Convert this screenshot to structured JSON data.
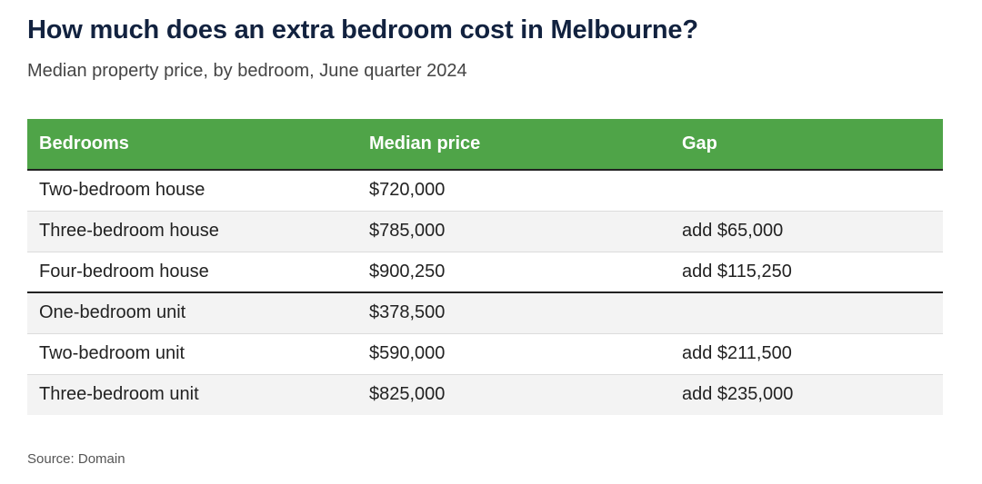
{
  "title": "How much does an extra bedroom cost in Melbourne?",
  "subtitle": "Median property price, by bedroom, June quarter 2024",
  "source": "Source: Domain",
  "colors": {
    "header_bg": "#4fa448",
    "header_text": "#ffffff",
    "title": "#12223f",
    "row_alt": "#f3f3f3"
  },
  "chart_data": {
    "type": "table",
    "title": "How much does an extra bedroom cost in Melbourne?",
    "subtitle": "Median property price, by bedroom, June quarter 2024",
    "columns": [
      "Bedrooms",
      "Median price",
      "Gap"
    ],
    "rows": [
      [
        "Two-bedroom house",
        "$720,000",
        ""
      ],
      [
        "Three-bedroom house",
        "$785,000",
        "add $65,000"
      ],
      [
        "Four-bedroom house",
        "$900,250",
        "add $115,250"
      ],
      [
        "One-bedroom unit",
        "$378,500",
        ""
      ],
      [
        "Two-bedroom unit",
        "$590,000",
        "add $211,500"
      ],
      [
        "Three-bedroom unit",
        "$825,000",
        "add $235,000"
      ]
    ],
    "groups": [
      {
        "rows": [
          0,
          1,
          2
        ]
      },
      {
        "rows": [
          3,
          4,
          5
        ]
      }
    ],
    "source": "Source: Domain"
  }
}
